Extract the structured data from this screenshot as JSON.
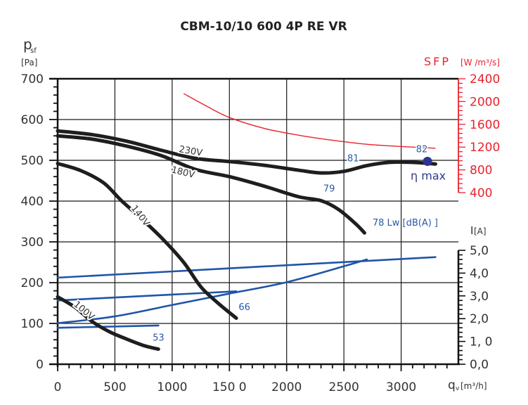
{
  "chart_data": {
    "type": "line",
    "title": "CBM-10/10 600 4P RE VR",
    "xlabel": "qv [m³/h]",
    "xlabel_main": "q",
    "xlabel_sub": "v",
    "xlabel_unit": "[m³/h]",
    "xlim": [
      0,
      3500
    ],
    "x_ticks": [
      0,
      500,
      1000,
      1500,
      2000,
      2500,
      3000
    ],
    "x_tick_labels": [
      "0",
      "500",
      "1000",
      "150 0",
      "2000",
      "2500",
      "3000"
    ],
    "ylabel": "psf [Pa]",
    "ylabel_main": "p",
    "ylabel_sub": "sf",
    "ylabel_unit": "[Pa]",
    "ylim": [
      0,
      700
    ],
    "y_ticks": [
      0,
      100,
      200,
      300,
      400,
      500,
      600,
      700
    ],
    "y_tick_labels": [
      "0",
      "100",
      "200",
      "300",
      "400",
      "500",
      "600",
      "700"
    ],
    "y2_label": "SFP",
    "y2_unit": "[W /m³/s]",
    "y2_ticks": [
      400,
      800,
      1200,
      1600,
      2000,
      2400
    ],
    "y2_tick_labels": [
      "400",
      "800",
      "1200",
      "1600",
      "2000",
      "2400"
    ],
    "y3_label": "I",
    "y3_unit": "[A]",
    "y3_ticks": [
      0,
      1,
      2,
      3,
      4,
      5
    ],
    "y3_tick_labels": [
      "0,0",
      "1, 0",
      "2,0",
      "3,0",
      "4,0",
      "5,0"
    ],
    "grid": true,
    "pressure_series": [
      {
        "name": "230V",
        "label": "230V",
        "x": [
          0,
          300,
          600,
          900,
          1200,
          1500,
          1800,
          2100,
          2300,
          2500,
          2700,
          2900,
          3100,
          3300
        ],
        "y": [
          572,
          563,
          547,
          525,
          505,
          497,
          488,
          476,
          469,
          473,
          487,
          495,
          495,
          491
        ]
      },
      {
        "name": "180V",
        "label": "180V",
        "x": [
          0,
          300,
          600,
          900,
          1200,
          1500,
          1800,
          2100,
          2300,
          2450,
          2600,
          2680
        ],
        "y": [
          560,
          552,
          535,
          512,
          478,
          460,
          437,
          411,
          401,
          380,
          345,
          322
        ]
      },
      {
        "name": "140V",
        "label": "140V",
        "x": [
          0,
          200,
          400,
          550,
          700,
          900,
          1100,
          1250,
          1400,
          1560
        ],
        "y": [
          492,
          475,
          445,
          403,
          365,
          312,
          250,
          190,
          150,
          113
        ]
      },
      {
        "name": "100V",
        "label": "100V",
        "x": [
          0,
          150,
          300,
          450,
          600,
          750,
          880
        ],
        "y": [
          165,
          140,
          105,
          80,
          62,
          46,
          37
        ]
      }
    ],
    "sfp_series": {
      "name": "SFP",
      "x": [
        1100,
        1300,
        1500,
        1800,
        2100,
        2400,
        2700,
        3000,
        3300
      ],
      "y": [
        2140,
        1920,
        1720,
        1530,
        1410,
        1320,
        1250,
        1210,
        1180
      ]
    },
    "current_series": [
      {
        "name": "I 230V",
        "x": [
          0,
          3300
        ],
        "y": [
          3.8,
          4.7
        ]
      },
      {
        "name": "I 180V",
        "x": [
          0,
          1560
        ],
        "y": [
          2.8,
          3.2
        ]
      },
      {
        "name": "I 140V",
        "x": [
          0,
          500,
          1000,
          1500,
          2000,
          2500,
          2700
        ],
        "y": [
          1.8,
          2.1,
          2.6,
          3.1,
          3.6,
          4.3,
          4.6
        ]
      },
      {
        "name": "I 100V",
        "x": [
          0,
          880
        ],
        "y": [
          1.6,
          1.7
        ]
      }
    ],
    "lw_labels": [
      {
        "text": "82",
        "x": 3130,
        "y": 520
      },
      {
        "text": "81",
        "x": 2530,
        "y": 497
      },
      {
        "text": "79",
        "x": 2320,
        "y": 423
      },
      {
        "text": "78  Lw [dB(A)  ]",
        "x": 2750,
        "y": 340
      },
      {
        "text": "66",
        "x": 1580,
        "y": 133
      },
      {
        "text": "53",
        "x": 830,
        "y": 58
      }
    ],
    "eta_max": {
      "label": "η max",
      "x": 3230,
      "y": 494
    },
    "colors": {
      "pressure": "#1e1e1e",
      "sfp": "#e8232f",
      "current": "#1f55a8",
      "lw_text": "#2b5aa8",
      "eta_dot": "#2a3593",
      "grid": "#1a1a1a"
    }
  }
}
